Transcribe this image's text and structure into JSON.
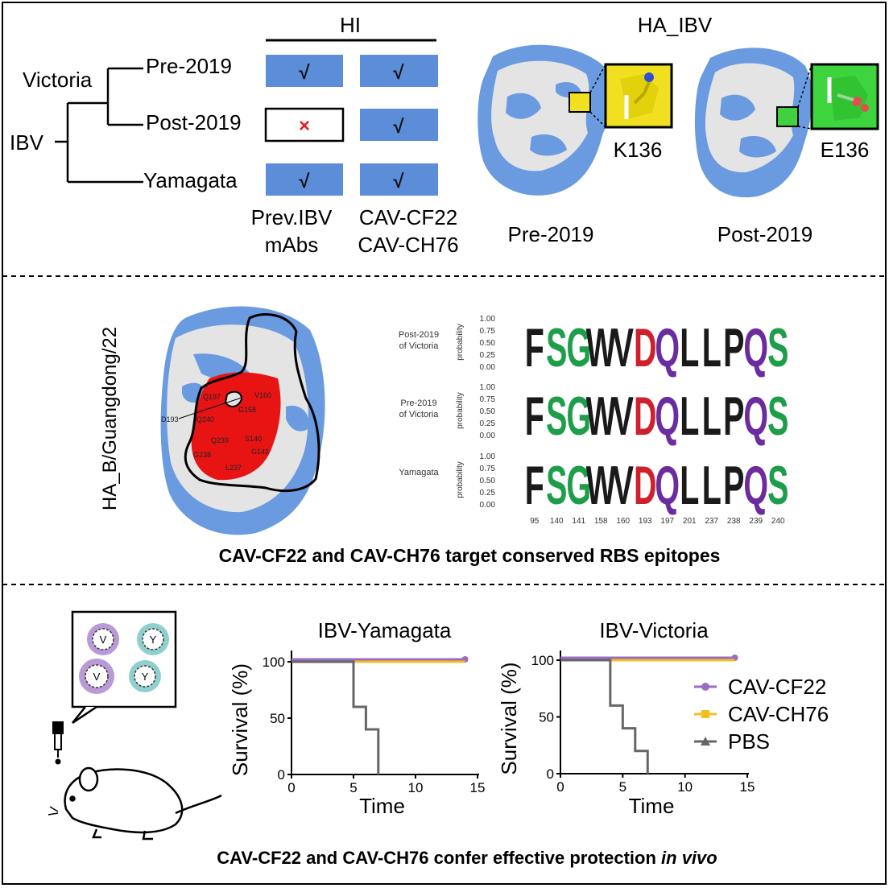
{
  "panel_top": {
    "hi_header": "HI",
    "tree": {
      "root": "IBV",
      "lineage": "Victoria",
      "pre": "Pre-2019",
      "post": "Post-2019",
      "yamagata": "Yamagata"
    },
    "hi_cells": {
      "pre_prev": "√",
      "pre_cav": "√",
      "post_prev": "×",
      "post_cav": "√",
      "yam_prev": "√",
      "yam_cav": "√"
    },
    "col_labels": {
      "prev_line1": "Prev.IBV",
      "prev_line2": "mAbs",
      "cav_line1": "CAV-CF22",
      "cav_line2": "CAV-CH76"
    },
    "structure_title": "HA_IBV",
    "residue_pre": "K136",
    "residue_post": "E136",
    "struct_label_pre": "Pre-2019",
    "struct_label_post": "Post-2019",
    "colors": {
      "cell_blue": "#5b8dd9",
      "cross": "#e02020",
      "protein_blue": "#6a9be0",
      "protein_white": "#e6e6e6"
    }
  },
  "panel_mid": {
    "vertical_label": "HA_B/Guangdong/22",
    "residues": [
      "Q197",
      "V160",
      "D193",
      "Q240",
      "G158",
      "Q239",
      "S140",
      "G141",
      "G238",
      "L237"
    ],
    "logo_rows": [
      {
        "label_line1": "Post-2019",
        "label_line2": "of Victoria"
      },
      {
        "label_line1": "Pre-2019",
        "label_line2": "of Victoria"
      },
      {
        "label_line1": "Yamagata",
        "label_line2": ""
      }
    ],
    "prob_axis_title": "probability",
    "prob_ticks": [
      "1.00",
      "0.75",
      "0.50",
      "0.25",
      "0.00"
    ],
    "logo_letters": [
      "F",
      "S",
      "G",
      "W",
      "V",
      "D",
      "Q",
      "L",
      "L",
      "P",
      "Q",
      "S"
    ],
    "logo_colors": [
      "#1a1a1a",
      "#1e9e4a",
      "#1e9e4a",
      "#1a1a1a",
      "#1a1a1a",
      "#d0202e",
      "#6a2c9e",
      "#1a1a1a",
      "#1a1a1a",
      "#1a1a1a",
      "#6a2c9e",
      "#1e9e4a"
    ],
    "positions": [
      "95",
      "140",
      "141",
      "158",
      "160",
      "193",
      "197",
      "201",
      "237",
      "238",
      "239",
      "240"
    ],
    "caption": "CAV-CF22 and CAV-CH76 target conserved RBS epitopes"
  },
  "panel_bottom": {
    "virus_labels": [
      "V",
      "Y",
      "V",
      "Y"
    ],
    "legend": [
      {
        "name": "CAV-CF22",
        "color": "#9b6cc4"
      },
      {
        "name": "CAV-CH76",
        "color": "#f0c020"
      },
      {
        "name": "PBS",
        "color": "#666666"
      }
    ],
    "caption_main": "CAV-CF22 and CAV-CH76 confer effective protection ",
    "caption_italic": "in vivo"
  },
  "chart_data": [
    {
      "type": "line",
      "title": "IBV-Yamagata",
      "xlabel": "Time",
      "ylabel": "Survival (%)",
      "xlim": [
        0,
        15
      ],
      "ylim": [
        0,
        100
      ],
      "xticks": [
        "0",
        "5",
        "10",
        "15"
      ],
      "yticks": [
        "0",
        "50",
        "100"
      ],
      "series": [
        {
          "name": "CAV-CF22",
          "color": "#9b6cc4",
          "x": [
            0,
            14
          ],
          "y": [
            100,
            100
          ]
        },
        {
          "name": "CAV-CH76",
          "color": "#f0c020",
          "x": [
            0,
            14
          ],
          "y": [
            100,
            100
          ]
        },
        {
          "name": "PBS",
          "color": "#666666",
          "step": true,
          "x": [
            0,
            5,
            6,
            7
          ],
          "y": [
            100,
            60,
            40,
            0
          ]
        }
      ]
    },
    {
      "type": "line",
      "title": "IBV-Victoria",
      "xlabel": "Time",
      "ylabel": "Survival (%)",
      "xlim": [
        0,
        15
      ],
      "ylim": [
        0,
        100
      ],
      "xticks": [
        "0",
        "5",
        "10",
        "15"
      ],
      "yticks": [
        "0",
        "50",
        "100"
      ],
      "series": [
        {
          "name": "CAV-CF22",
          "color": "#9b6cc4",
          "x": [
            0,
            14
          ],
          "y": [
            100,
            100
          ]
        },
        {
          "name": "CAV-CH76",
          "color": "#f0c020",
          "x": [
            0,
            14
          ],
          "y": [
            100,
            100
          ]
        },
        {
          "name": "PBS",
          "color": "#666666",
          "step": true,
          "x": [
            0,
            4,
            5,
            6,
            7
          ],
          "y": [
            100,
            60,
            40,
            20,
            0
          ]
        }
      ]
    }
  ]
}
